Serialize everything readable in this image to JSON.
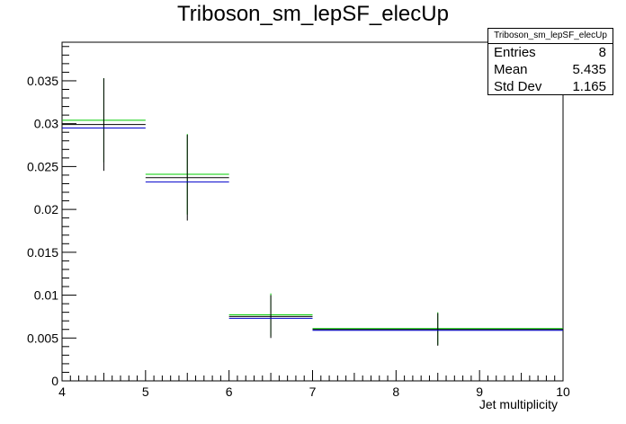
{
  "chart_data": {
    "type": "histogram",
    "title": "Triboson_sm_lepSF_elecUp",
    "xlabel": "Jet multiplicity",
    "ylabel": "",
    "xlim": [
      4,
      10
    ],
    "ylim": [
      0,
      0.0395
    ],
    "x_ticks": [
      4,
      5,
      6,
      7,
      8,
      9,
      10
    ],
    "y_ticks": [
      {
        "value": 0,
        "label": "0"
      },
      {
        "value": 0.005,
        "label": "0.005"
      },
      {
        "value": 0.01,
        "label": "0.01"
      },
      {
        "value": 0.015,
        "label": "0.015"
      },
      {
        "value": 0.02,
        "label": "0.02"
      },
      {
        "value": 0.025,
        "label": "0.025"
      },
      {
        "value": 0.03,
        "label": "0.03"
      },
      {
        "value": 0.035,
        "label": "0.035"
      }
    ],
    "bins": [
      [
        4,
        5
      ],
      [
        5,
        6
      ],
      [
        6,
        7
      ],
      [
        7,
        10
      ]
    ],
    "series": [
      {
        "color": "#00cc00",
        "values": [
          0.0304,
          0.0241,
          0.0077,
          0.0061
        ],
        "errors": [
          0.0049,
          0.0047,
          0.0025,
          0.0019
        ]
      },
      {
        "color": "#000000",
        "values": [
          0.0299,
          0.0237,
          0.0075,
          0.006
        ],
        "errors": [
          0.0054,
          0.005,
          0.0025,
          0.0019
        ]
      },
      {
        "color": "#0000cc",
        "values": [
          0.0295,
          0.0232,
          0.0073,
          0.0059
        ],
        "errors": [
          0.0,
          0.0,
          0.0,
          0.0
        ]
      }
    ],
    "legend": "none",
    "grid": false
  },
  "stats": {
    "title": "Triboson_sm_lepSF_elecUp",
    "rows": [
      {
        "label": "Entries",
        "value": "8"
      },
      {
        "label": "Mean",
        "value": "5.435"
      },
      {
        "label": "Std Dev",
        "value": "1.165"
      }
    ]
  }
}
